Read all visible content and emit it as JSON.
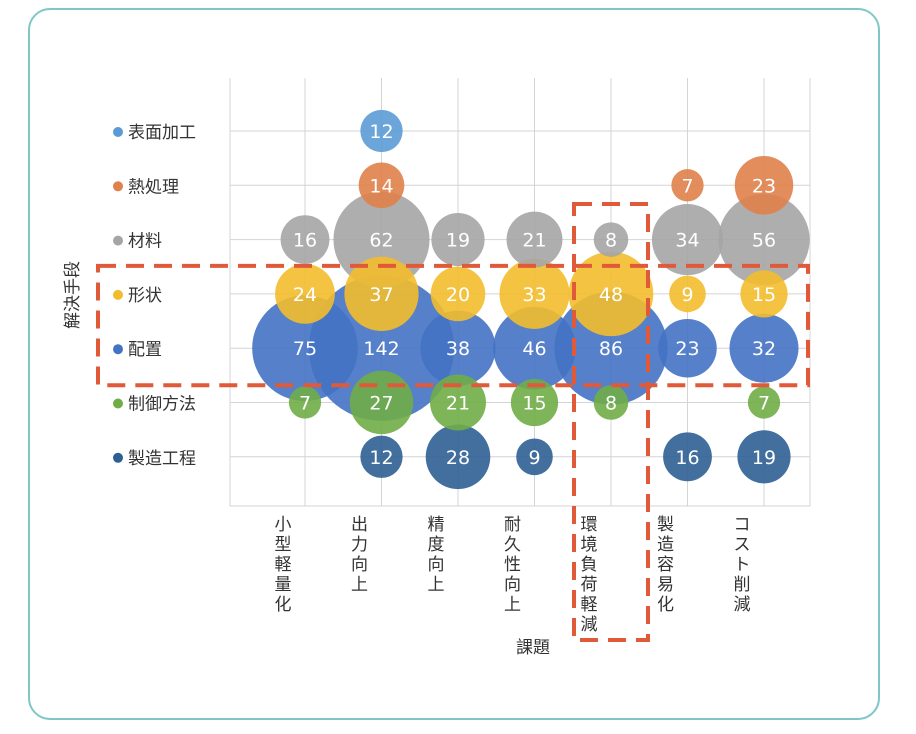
{
  "chart_data": {
    "type": "bubble",
    "xlabel": "課題",
    "ylabel": "解決手段",
    "x_categories": [
      "小型軽量化",
      "出力向上",
      "精度向上",
      "耐久性向上",
      "環境負荷軽減",
      "製造容易化",
      "コスト削減"
    ],
    "y_categories": [
      "表面加工",
      "熱処理",
      "材料",
      "形状",
      "配置",
      "制御方法",
      "製造工程"
    ],
    "y_colors": [
      "#5b9bd5",
      "#e0804a",
      "#a5a5a5",
      "#f2bd2c",
      "#4472c4",
      "#70ad47",
      "#2e5f94"
    ],
    "grid": true,
    "highlight_rows": [
      "形状",
      "配置"
    ],
    "highlight_columns": [
      "環境負荷軽減"
    ],
    "highlight_color": "#e05a3a",
    "points": [
      {
        "x": "出力向上",
        "y": "表面加工",
        "value": 12
      },
      {
        "x": "出力向上",
        "y": "熱処理",
        "value": 14
      },
      {
        "x": "製造容易化",
        "y": "熱処理",
        "value": 7
      },
      {
        "x": "コスト削減",
        "y": "熱処理",
        "value": 23
      },
      {
        "x": "小型軽量化",
        "y": "材料",
        "value": 16
      },
      {
        "x": "出力向上",
        "y": "材料",
        "value": 62
      },
      {
        "x": "精度向上",
        "y": "材料",
        "value": 19
      },
      {
        "x": "耐久性向上",
        "y": "材料",
        "value": 21
      },
      {
        "x": "環境負荷軽減",
        "y": "材料",
        "value": 8
      },
      {
        "x": "製造容易化",
        "y": "材料",
        "value": 34
      },
      {
        "x": "コスト削減",
        "y": "材料",
        "value": 56
      },
      {
        "x": "小型軽量化",
        "y": "形状",
        "value": 24
      },
      {
        "x": "出力向上",
        "y": "形状",
        "value": 37
      },
      {
        "x": "精度向上",
        "y": "形状",
        "value": 20
      },
      {
        "x": "耐久性向上",
        "y": "形状",
        "value": 33
      },
      {
        "x": "環境負荷軽減",
        "y": "形状",
        "value": 48
      },
      {
        "x": "製造容易化",
        "y": "形状",
        "value": 9
      },
      {
        "x": "コスト削減",
        "y": "形状",
        "value": 15
      },
      {
        "x": "小型軽量化",
        "y": "配置",
        "value": 75
      },
      {
        "x": "出力向上",
        "y": "配置",
        "value": 142
      },
      {
        "x": "精度向上",
        "y": "配置",
        "value": 38
      },
      {
        "x": "耐久性向上",
        "y": "配置",
        "value": 46
      },
      {
        "x": "環境負荷軽減",
        "y": "配置",
        "value": 86
      },
      {
        "x": "製造容易化",
        "y": "配置",
        "value": 23
      },
      {
        "x": "コスト削減",
        "y": "配置",
        "value": 32
      },
      {
        "x": "小型軽量化",
        "y": "制御方法",
        "value": 7
      },
      {
        "x": "出力向上",
        "y": "制御方法",
        "value": 27
      },
      {
        "x": "精度向上",
        "y": "制御方法",
        "value": 21
      },
      {
        "x": "耐久性向上",
        "y": "制御方法",
        "value": 15
      },
      {
        "x": "環境負荷軽減",
        "y": "制御方法",
        "value": 8
      },
      {
        "x": "コスト削減",
        "y": "制御方法",
        "value": 7
      },
      {
        "x": "出力向上",
        "y": "製造工程",
        "value": 12
      },
      {
        "x": "精度向上",
        "y": "製造工程",
        "value": 28
      },
      {
        "x": "耐久性向上",
        "y": "製造工程",
        "value": 9
      },
      {
        "x": "製造容易化",
        "y": "製造工程",
        "value": 16
      },
      {
        "x": "コスト削減",
        "y": "製造工程",
        "value": 19
      }
    ]
  }
}
